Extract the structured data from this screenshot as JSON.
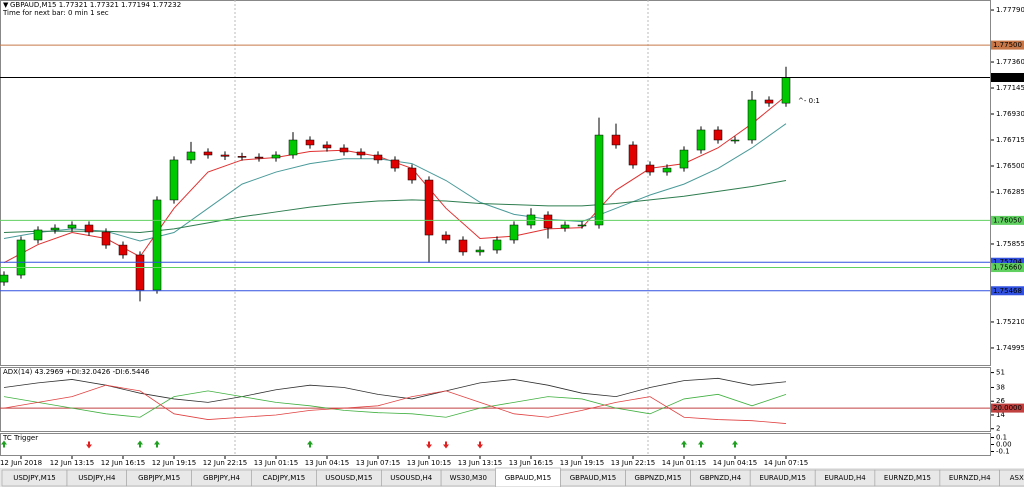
{
  "chart_data": [
    {
      "type": "candlestick",
      "title": "GBPAUD,M15  1.77321 1.77321 1.77194 1.77232",
      "subtitle": "Time for next bar: 0 min 1 sec",
      "annotation": "^- 0:1",
      "up_color": "#00c800",
      "down_color": "#e00000",
      "open": [
        1.7554,
        1.75598,
        1.75888,
        1.75971,
        1.75987,
        1.76012,
        1.75954,
        1.75846,
        1.75764,
        1.75474,
        1.76219,
        1.7655,
        1.76616,
        1.76591,
        1.7658,
        1.76574,
        1.76566,
        1.76591,
        1.76715,
        1.76674,
        1.76649,
        1.76616,
        1.76591,
        1.7655,
        1.76483,
        1.76384,
        1.75929,
        1.75888,
        1.75789,
        1.75805,
        1.75888,
        1.76012,
        1.76095,
        1.75987,
        1.76012,
        1.76012,
        1.76756,
        1.76674,
        1.76508,
        1.7645,
        1.76483,
        1.76632,
        1.76798,
        1.76715,
        1.76715,
        1.77046,
        1.7702
      ],
      "high": [
        1.75628,
        1.75918,
        1.76001,
        1.76017,
        1.76042,
        1.76042,
        1.75984,
        1.75876,
        1.75794,
        1.76249,
        1.7658,
        1.767,
        1.76646,
        1.76621,
        1.7661,
        1.76604,
        1.76621,
        1.7678,
        1.76745,
        1.76704,
        1.76679,
        1.76646,
        1.76621,
        1.7658,
        1.76513,
        1.76414,
        1.75959,
        1.75918,
        1.75835,
        1.75918,
        1.76042,
        1.7615,
        1.76125,
        1.76042,
        1.76042,
        1.769,
        1.7685,
        1.76704,
        1.76538,
        1.76513,
        1.76662,
        1.76828,
        1.76828,
        1.76745,
        1.7712,
        1.77076,
        1.77321
      ],
      "low": [
        1.7551,
        1.75568,
        1.75858,
        1.75941,
        1.75957,
        1.75924,
        1.75816,
        1.75734,
        1.7538,
        1.75444,
        1.76189,
        1.7652,
        1.76561,
        1.7655,
        1.76544,
        1.76536,
        1.76536,
        1.76561,
        1.76644,
        1.76619,
        1.76586,
        1.76561,
        1.7652,
        1.76453,
        1.76354,
        1.757,
        1.75858,
        1.75759,
        1.75759,
        1.75775,
        1.75858,
        1.75982,
        1.759,
        1.75957,
        1.75982,
        1.75982,
        1.76644,
        1.76478,
        1.7642,
        1.7642,
        1.76453,
        1.76602,
        1.76685,
        1.76685,
        1.76685,
        1.7699,
        1.7699
      ],
      "close": [
        1.75598,
        1.75888,
        1.75971,
        1.75987,
        1.76012,
        1.75954,
        1.75846,
        1.75764,
        1.75474,
        1.76219,
        1.7655,
        1.76616,
        1.76591,
        1.7658,
        1.76574,
        1.76566,
        1.76591,
        1.76715,
        1.76674,
        1.76649,
        1.76616,
        1.76591,
        1.7655,
        1.76483,
        1.76384,
        1.75929,
        1.75888,
        1.75789,
        1.75805,
        1.75888,
        1.76012,
        1.76095,
        1.75987,
        1.76012,
        1.76012,
        1.76756,
        1.76674,
        1.76508,
        1.7645,
        1.76483,
        1.76632,
        1.76798,
        1.76715,
        1.76715,
        1.77046,
        1.7702,
        1.77232
      ],
      "overlays": [
        {
          "color": "#e03030",
          "values": [
            1.757,
            1.7585,
            1.7595,
            1.759,
            1.7575,
            1.7615,
            1.7645,
            1.7655,
            1.7657,
            1.7662,
            1.7663,
            1.7658,
            1.7648,
            1.7615,
            1.759,
            1.7592,
            1.7598,
            1.7599,
            1.763,
            1.7648,
            1.7652,
            1.7665,
            1.7685,
            1.7708
          ]
        },
        {
          "color": "#4a9a9a",
          "values": [
            1.759,
            1.7595,
            1.7598,
            1.7596,
            1.7588,
            1.7595,
            1.7615,
            1.7635,
            1.7645,
            1.7652,
            1.7656,
            1.7656,
            1.7652,
            1.7638,
            1.762,
            1.761,
            1.7606,
            1.7604,
            1.7615,
            1.7626,
            1.7635,
            1.7648,
            1.7665,
            1.7685
          ]
        },
        {
          "color": "#2e7d4f",
          "values": [
            1.7595,
            1.7596,
            1.7596,
            1.7596,
            1.7595,
            1.7598,
            1.7603,
            1.7608,
            1.7612,
            1.7616,
            1.7619,
            1.7621,
            1.7622,
            1.7621,
            1.7619,
            1.7618,
            1.7617,
            1.7617,
            1.7619,
            1.7622,
            1.7625,
            1.7629,
            1.7633,
            1.7638
          ]
        }
      ],
      "ylim": [
        1.74854,
        1.77873
      ],
      "yticks": [
        {
          "value": 1.7779,
          "label": "1.77790"
        },
        {
          "value": 1.7736,
          "label": "1.77360"
        },
        {
          "value": 1.77145,
          "label": "1.77145"
        },
        {
          "value": 1.7693,
          "label": "1.76930"
        },
        {
          "value": 1.76715,
          "label": "1.76715"
        },
        {
          "value": 1.765,
          "label": "1.76500"
        },
        {
          "value": 1.76285,
          "label": "1.76285"
        },
        {
          "value": 1.75855,
          "label": "1.75855"
        },
        {
          "value": 1.7521,
          "label": "1.75210"
        },
        {
          "value": 1.74995,
          "label": "1.74995"
        }
      ],
      "levels": [
        {
          "value": 1.775,
          "label": "1.77500",
          "color": "#c87848"
        },
        {
          "value": 1.77232,
          "label": "1.77232",
          "color": "#000000"
        },
        {
          "value": 1.7605,
          "label": "1.76050",
          "color": "#60d060"
        },
        {
          "value": 1.75704,
          "label": "1.75704",
          "color": "#3050e0"
        },
        {
          "value": 1.7566,
          "label": "1.75660",
          "color": "#60d060"
        },
        {
          "value": 1.75468,
          "label": "1.75468",
          "color": "#3050e0"
        }
      ],
      "time_labels": [
        "12 Jun 2018",
        "12 Jun 13:15",
        "12 Jun 16:15",
        "12 Jun 19:15",
        "12 Jun 22:15",
        "13 Jun 01:15",
        "13 Jun 04:15",
        "13 Jun 07:15",
        "13 Jun 10:15",
        "13 Jun 13:15",
        "13 Jun 16:15",
        "13 Jun 19:15",
        "13 Jun 22:15",
        "14 Jun 01:15",
        "14 Jun 04:15",
        "14 Jun 07:15"
      ]
    },
    {
      "type": "line",
      "title": "ADX(14) 43.2969 +DI:32.0426 -DI:6.5446",
      "series": [
        {
          "color": "#303030",
          "values": [
            38,
            42,
            45,
            40,
            33,
            28,
            25,
            30,
            36,
            40,
            38,
            32,
            28,
            35,
            42,
            45,
            40,
            33,
            30,
            38,
            44,
            46,
            40,
            43
          ]
        },
        {
          "color": "#40b040",
          "values": [
            30,
            25,
            20,
            15,
            12,
            30,
            35,
            30,
            25,
            22,
            18,
            16,
            15,
            12,
            20,
            25,
            30,
            28,
            20,
            15,
            28,
            32,
            22,
            32
          ]
        },
        {
          "color": "#e04040",
          "values": [
            20,
            25,
            30,
            40,
            35,
            15,
            10,
            12,
            14,
            18,
            20,
            22,
            30,
            35,
            25,
            15,
            12,
            18,
            25,
            30,
            12,
            10,
            9,
            6.5
          ]
        }
      ],
      "ylim": [
        0,
        55
      ],
      "yticks": [
        51,
        38,
        26,
        14,
        2
      ],
      "levels": [
        {
          "value": 20,
          "label": "20.0000",
          "color": "#c04040"
        }
      ]
    },
    {
      "type": "signals",
      "title": "TC Trigger",
      "up_signals": [
        0,
        8,
        9,
        18,
        40,
        41,
        43
      ],
      "down_signals": [
        5,
        25,
        26,
        28
      ],
      "up_color": "#20a020",
      "down_color": "#e02020",
      "ylim": [
        -0.15,
        0.15
      ],
      "yticks": [
        0.1,
        {
          "value": 0,
          "label": "0.00"
        },
        -0.1
      ]
    }
  ],
  "tabs": [
    "USDJPY,M15",
    "USDJPY,H4",
    "GBPJPY,M15",
    "GBPJPY,H4",
    "CADJPY,M15",
    "USOUSD,M15",
    "USOUSD,H4",
    "WS30,M30",
    "GBPAUD,M15",
    "GBPAUD,M15",
    "GBPNZD,M15",
    "GBPNZD,H4",
    "EURAUD,M15",
    "EURAUD,H4",
    "EURNZD,M15",
    "EURNZD,H4",
    "ASX200,H1",
    "AS"
  ],
  "active_tab": 8
}
